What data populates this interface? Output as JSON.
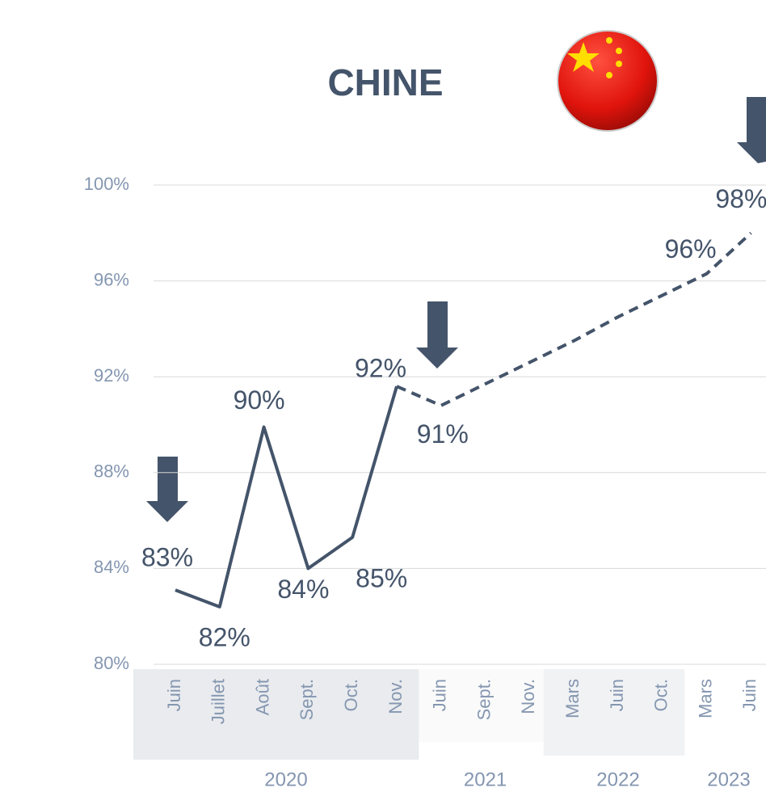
{
  "chart_data": {
    "type": "line",
    "title": "CHINE",
    "categories": [
      "Juin",
      "Juillet",
      "Août",
      "Sept.",
      "Oct.",
      "Nov.",
      "Juin",
      "Sept.",
      "Nov.",
      "Mars",
      "Juin",
      "Oct.",
      "Mars",
      "Juin"
    ],
    "x_groups": [
      {
        "label": "2020",
        "size": 6
      },
      {
        "label": "2021",
        "size": 3
      },
      {
        "label": "2022",
        "size": 3
      },
      {
        "label": "2023",
        "size": 2
      }
    ],
    "series": [
      {
        "color": "#44546a",
        "dash": false,
        "values": [
          83.1,
          82.4,
          89.9,
          84.0,
          85.3,
          91.6,
          null,
          null,
          null,
          null,
          null,
          null,
          null,
          null
        ],
        "value_labels": [
          "83%",
          "82%",
          "90%",
          "84%",
          "85%",
          "92%",
          null,
          null,
          null,
          null,
          null,
          null,
          null,
          null
        ]
      },
      {
        "color": "#44546a",
        "dash": true,
        "values": [
          null,
          null,
          null,
          null,
          null,
          91.6,
          90.8,
          91.7,
          92.6,
          93.5,
          94.5,
          95.4,
          96.3,
          98.0
        ],
        "value_labels": [
          null,
          null,
          null,
          null,
          null,
          null,
          "91%",
          null,
          null,
          null,
          null,
          null,
          "96%",
          "98%"
        ]
      }
    ],
    "ylim": [
      80,
      100
    ],
    "yticks": [
      {
        "value": 80,
        "label": "80%"
      },
      {
        "value": 84,
        "label": "84%"
      },
      {
        "value": 88,
        "label": "88%"
      },
      {
        "value": 92,
        "label": "92%"
      },
      {
        "value": 96,
        "label": "96%"
      },
      {
        "value": 100,
        "label": "100%"
      }
    ],
    "grid": true
  }
}
